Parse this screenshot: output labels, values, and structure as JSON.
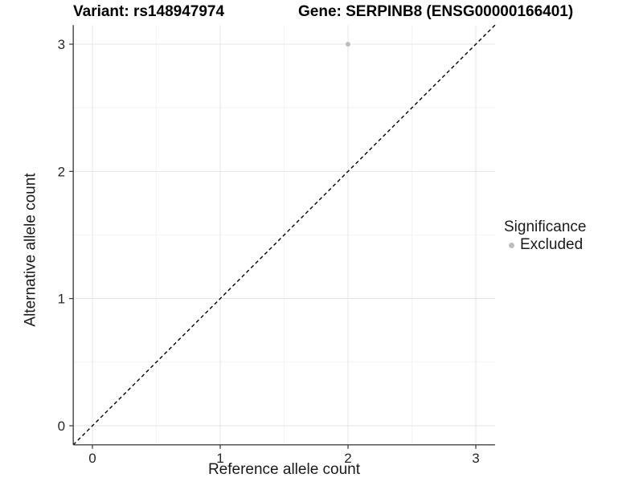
{
  "chart_data": {
    "type": "scatter",
    "title_left": "Variant: rs148947974",
    "title_right": "Gene: SERPINB8 (ENSG00000166401)",
    "xlabel": "Reference allele count",
    "ylabel": "Alternative allele count",
    "xlim": [
      -0.15,
      3.15
    ],
    "ylim": [
      -0.15,
      3.15
    ],
    "x_ticks": [
      0,
      1,
      2,
      3
    ],
    "y_ticks": [
      0,
      1,
      2,
      3
    ],
    "x_minor_ticks": [
      0.5,
      1.5,
      2.5
    ],
    "y_minor_ticks": [
      0.5,
      1.5,
      2.5
    ],
    "grid": "major and minor, light gray on white",
    "identity_line": {
      "from": -0.15,
      "to": 3.15,
      "style": "dashed",
      "color": "#000000"
    },
    "series": [
      {
        "name": "Excluded",
        "color": "#bdbdbd",
        "points": [
          [
            2,
            3
          ]
        ]
      }
    ],
    "legend": {
      "title": "Significance",
      "position": "right",
      "entries": [
        {
          "label": "Excluded",
          "color": "#bdbdbd"
        }
      ]
    }
  },
  "colors": {
    "background": "#ffffff",
    "grid_major": "#e4e4e4",
    "grid_minor": "#f1f1f1",
    "axis": "#333333",
    "tick_text": "#262626",
    "point": "#bdbdbd"
  }
}
